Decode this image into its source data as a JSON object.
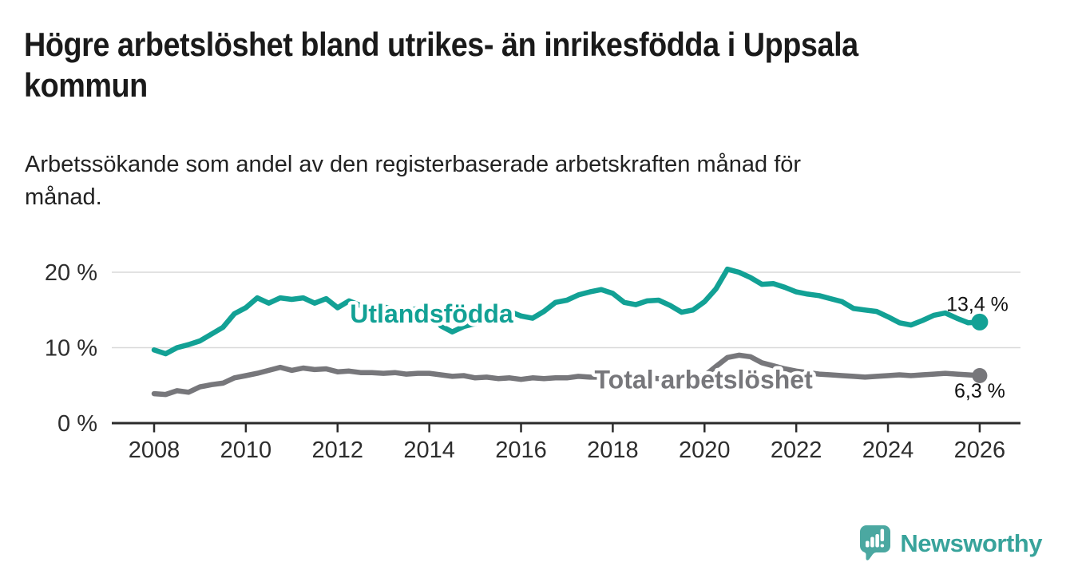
{
  "header": {
    "title_line1": "Högre arbetslöshet bland utrikes- än inrikesfödda i Uppsala",
    "title_line2": "kommun",
    "subtitle_line1": "Arbetssökande som andel av den registerbaserade arbetskraften månad för",
    "subtitle_line2": "månad."
  },
  "chart_data": {
    "type": "line",
    "title": "Högre arbetslöshet bland utrikes- än inrikesfödda i Uppsala kommun",
    "subtitle": "Arbetssökande som andel av den registerbaserade arbetskraften månad för månad.",
    "unit": "%",
    "x_note": "year, quarterly samples 2008-2026",
    "x": [
      2008,
      2008.25,
      2008.5,
      2008.75,
      2009,
      2009.25,
      2009.5,
      2009.75,
      2010,
      2010.25,
      2010.5,
      2010.75,
      2011,
      2011.25,
      2011.5,
      2011.75,
      2012,
      2012.25,
      2012.5,
      2012.75,
      2013,
      2013.25,
      2013.5,
      2013.75,
      2014,
      2014.25,
      2014.5,
      2014.75,
      2015,
      2015.25,
      2015.5,
      2015.75,
      2016,
      2016.25,
      2016.5,
      2016.75,
      2017,
      2017.25,
      2017.5,
      2017.75,
      2018,
      2018.25,
      2018.5,
      2018.75,
      2019,
      2019.25,
      2019.5,
      2019.75,
      2020,
      2020.25,
      2020.5,
      2020.75,
      2021,
      2021.25,
      2021.5,
      2021.75,
      2022,
      2022.25,
      2022.5,
      2022.75,
      2023,
      2023.25,
      2023.5,
      2023.75,
      2024,
      2024.25,
      2024.5,
      2024.75,
      2025,
      2025.25,
      2025.5,
      2025.75,
      2026
    ],
    "series": [
      {
        "name": "Utlandsfödda",
        "color": "#12a195",
        "end_label": "13,4 %",
        "end_value": 13.4,
        "values": [
          9.7,
          9.2,
          10.0,
          10.4,
          10.9,
          11.8,
          12.7,
          14.5,
          15.3,
          16.6,
          15.9,
          16.6,
          16.4,
          16.6,
          15.9,
          16.5,
          15.3,
          16.2,
          15.6,
          15.5,
          15.4,
          15.1,
          14.9,
          15.2,
          15.0,
          12.9,
          12.1,
          12.8,
          13.2,
          13.6,
          14.2,
          14.8,
          14.2,
          13.9,
          14.8,
          16.0,
          16.3,
          17.0,
          17.4,
          17.7,
          17.2,
          16.0,
          15.7,
          16.2,
          16.3,
          15.6,
          14.7,
          15.0,
          16.1,
          17.8,
          20.4,
          20.0,
          19.3,
          18.4,
          18.5,
          18.0,
          17.4,
          17.1,
          16.9,
          16.5,
          16.1,
          15.2,
          15.0,
          14.8,
          14.1,
          13.3,
          13.0,
          13.6,
          14.3,
          14.6,
          13.9,
          13.3,
          13.4
        ]
      },
      {
        "name": "Total arbetslöshet",
        "color": "#77777b",
        "end_label": "6,3 %",
        "end_value": 6.3,
        "values": [
          3.9,
          3.8,
          4.3,
          4.1,
          4.8,
          5.1,
          5.3,
          6.0,
          6.3,
          6.6,
          7.0,
          7.4,
          7.0,
          7.3,
          7.1,
          7.2,
          6.8,
          6.9,
          6.7,
          6.7,
          6.6,
          6.7,
          6.5,
          6.6,
          6.6,
          6.4,
          6.2,
          6.3,
          6.0,
          6.1,
          5.9,
          6.0,
          5.8,
          6.0,
          5.9,
          6.0,
          6.0,
          6.2,
          6.1,
          6.1,
          6.2,
          6.0,
          5.9,
          6.0,
          5.9,
          5.8,
          6.0,
          6.1,
          6.3,
          7.5,
          8.7,
          9.0,
          8.8,
          8.0,
          7.6,
          7.2,
          6.9,
          6.7,
          6.5,
          6.4,
          6.3,
          6.2,
          6.1,
          6.2,
          6.3,
          6.4,
          6.3,
          6.4,
          6.5,
          6.6,
          6.5,
          6.4,
          6.3
        ]
      }
    ],
    "series_labels": [
      {
        "text": "Utlandsfödda",
        "x": 2014.05,
        "y": 13.33,
        "color": "#12a195"
      },
      {
        "text": "Total arbetslöshet",
        "x": 2019.98,
        "y": 4.6,
        "color": "#77777b"
      }
    ],
    "xticks": [
      2008,
      2010,
      2012,
      2014,
      2016,
      2018,
      2020,
      2022,
      2024,
      2026
    ],
    "yticks": [
      {
        "value": 0,
        "label": "0 %"
      },
      {
        "value": 10,
        "label": "10 %"
      },
      {
        "value": 20,
        "label": "20 %"
      }
    ],
    "ylim": [
      0,
      21.5
    ],
    "xlim": [
      2007.1,
      2026.9
    ],
    "grid": "horizontal-light",
    "legend": "inline-series-labels"
  },
  "footer": {
    "brand": "Newsworthy",
    "brand_color": "#38a39b",
    "icon_color": "#4ba8a1",
    "icon": "bar-chart-speech-bubble-icon"
  },
  "colors": {
    "background": "#ffffff",
    "title_text": "#1a1a1a",
    "axis_text": "#2d2d2d",
    "axis_line": "#2b2b2b",
    "gridline": "#d9d9d9",
    "value_label_text": "#111111"
  }
}
